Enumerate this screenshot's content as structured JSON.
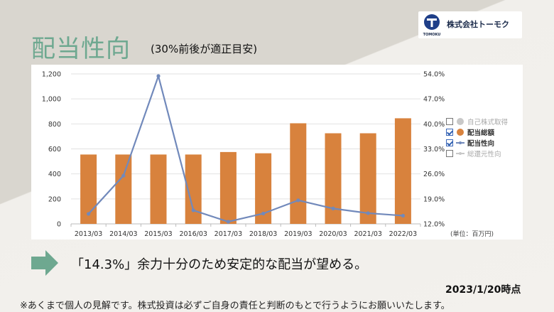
{
  "header": {
    "title": "配当性向",
    "subtitle": "(30%前後が適正目安)",
    "company_name": "株式会社トーモク",
    "logo_caption": "TOMOKU"
  },
  "colors": {
    "bar": "#d8823d",
    "line": "#7189bb",
    "title": "#6ea890",
    "arrow": "#6ea890"
  },
  "chart_data": {
    "type": "bar",
    "categories": [
      "2013/03",
      "2014/03",
      "2015/03",
      "2016/03",
      "2017/03",
      "2018/03",
      "2019/03",
      "2020/03",
      "2021/03",
      "2022/03"
    ],
    "series": [
      {
        "name": "配当総額",
        "type": "bar",
        "axis": "left",
        "values": [
          555,
          555,
          555,
          555,
          575,
          565,
          805,
          725,
          725,
          845
        ]
      },
      {
        "name": "配当性向",
        "type": "line",
        "axis": "right",
        "values": [
          14.8,
          25.5,
          53.4,
          15.8,
          12.6,
          14.9,
          18.6,
          16.3,
          15.0,
          14.3
        ]
      }
    ],
    "y_left": {
      "lim": [
        0,
        1200
      ],
      "ticks": [
        "0",
        "200",
        "400",
        "600",
        "800",
        "1,000",
        "1,200"
      ]
    },
    "y_right": {
      "lim": [
        12.0,
        54.0
      ],
      "ticks": [
        "12.0%",
        "19.0%",
        "26.0%",
        "33.0%",
        "40.0%",
        "47.0%",
        "54.0%"
      ]
    },
    "legend": {
      "placement": "right",
      "items": [
        {
          "label": "自己株式取得",
          "checked": false,
          "symbol": "grey-dot"
        },
        {
          "label": "配当総額",
          "checked": true,
          "symbol": "orange-dot"
        },
        {
          "label": "配当性向",
          "checked": true,
          "symbol": "blue-line"
        },
        {
          "label": "総還元性向",
          "checked": false,
          "symbol": "grey-line"
        }
      ]
    },
    "unit_note": "(単位：百万円)",
    "grid": true
  },
  "message": "「14.3%」余力十分のため安定的な配当が望める。",
  "as_of": "2023/1/20時点",
  "disclaimer": "※あくまで個人の見解です。株式投資は必ずご自身の責任と判断のもとで行うようにお願いいたします。"
}
